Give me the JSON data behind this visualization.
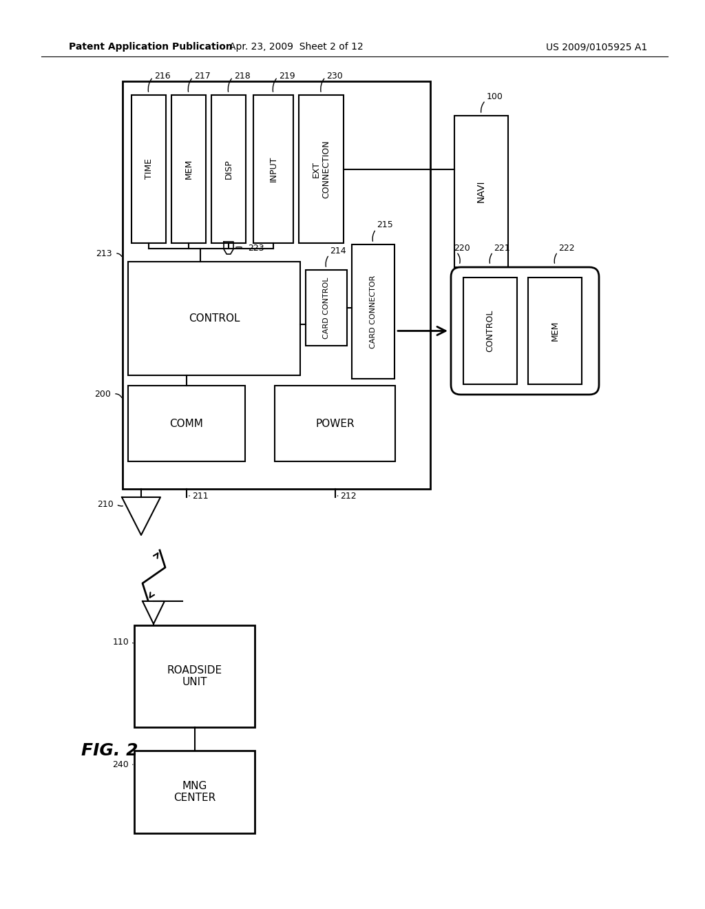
{
  "header_left": "Patent Application Publication",
  "header_mid": "Apr. 23, 2009  Sheet 2 of 12",
  "header_right": "US 2009/0105925 A1",
  "fig_label": "FIG. 2",
  "bg_color": "#ffffff",
  "line_color": "#000000"
}
